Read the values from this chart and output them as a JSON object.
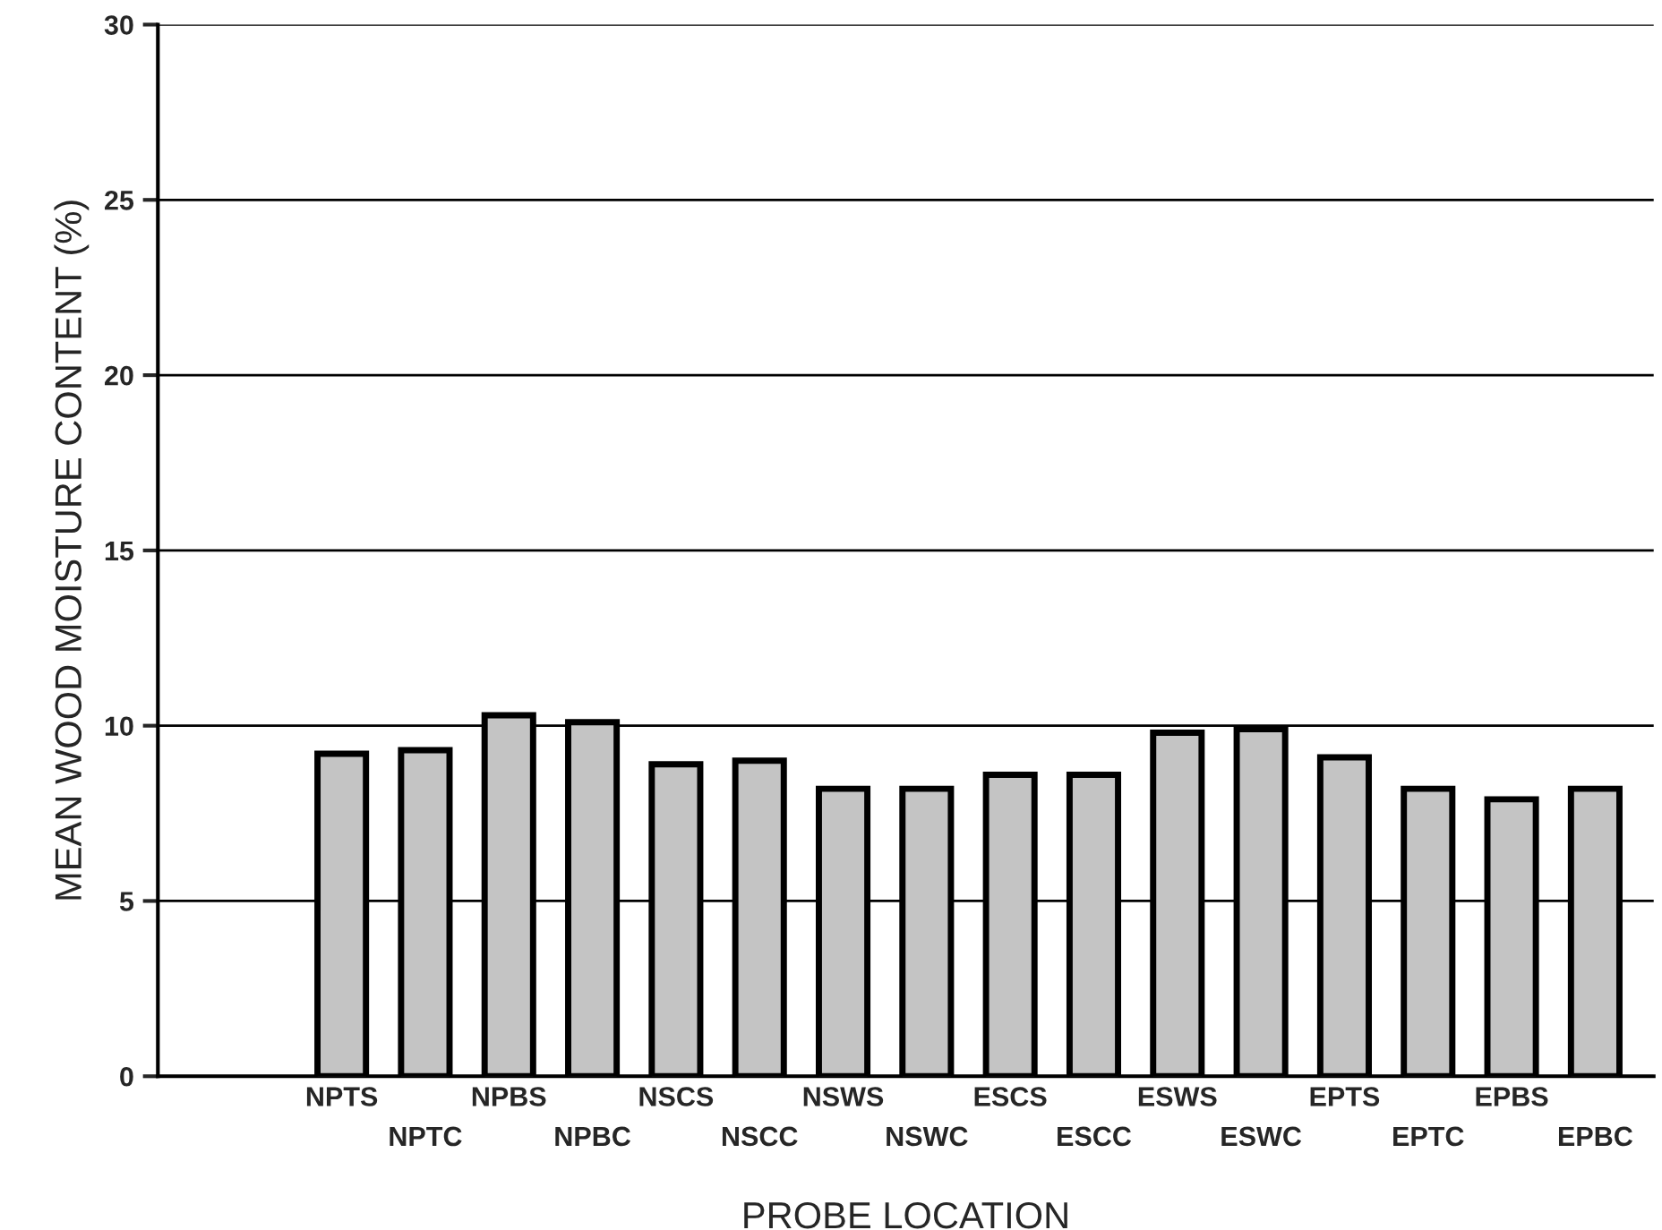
{
  "chart_data": {
    "type": "bar",
    "xlabel": "PROBE LOCATION",
    "ylabel": "MEAN WOOD MOISTURE CONTENT (%)",
    "categories": [
      "NPTS",
      "NPTC",
      "NPBS",
      "NPBC",
      "NSCS",
      "NSCC",
      "NSWS",
      "NSWC",
      "ESCS",
      "ESCC",
      "ESWS",
      "ESWC",
      "EPTS",
      "EPTC",
      "EPBS",
      "EPBC"
    ],
    "values": [
      9.2,
      9.3,
      10.3,
      10.1,
      8.9,
      9.0,
      8.2,
      8.2,
      8.6,
      8.6,
      9.8,
      9.9,
      9.1,
      8.2,
      7.9,
      8.2
    ],
    "color": "#c4c4c4",
    "ylim": [
      0,
      30
    ],
    "yticks": [
      0,
      5,
      10,
      15,
      20,
      25,
      30
    ],
    "grid": "y"
  }
}
